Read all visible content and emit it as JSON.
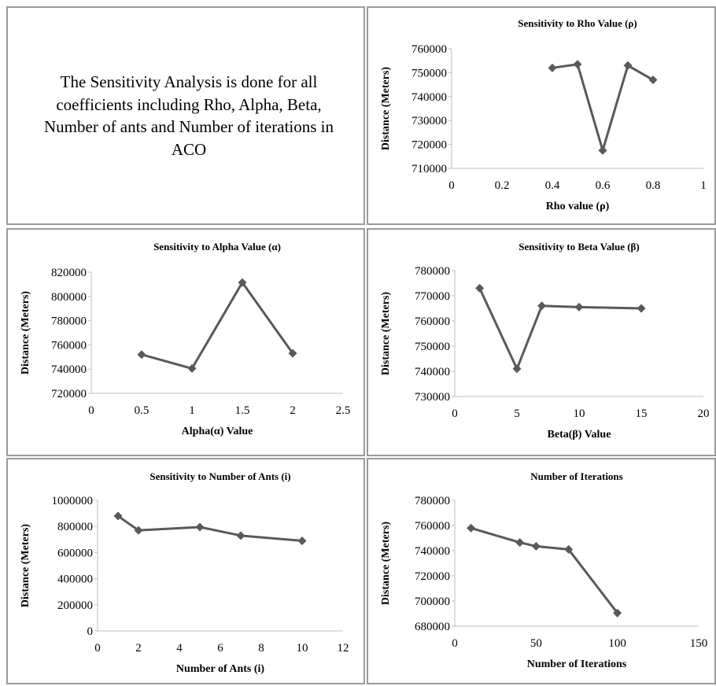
{
  "intro": {
    "text": "The Sensitivity Analysis is done for all coefficients including Rho, Alpha, Beta, Number of ants and Number of iterations in ACO"
  },
  "style": {
    "line_color": "#595959",
    "axis_color": "#bfbfbf",
    "border_color": "#9a9a9a"
  },
  "chart_data": [
    {
      "id": "rho",
      "type": "scatter",
      "title": "Sensitivity to Rho Value (ρ)",
      "xlabel": "Rho value (ρ)",
      "ylabel": "Distance (Meters)",
      "x": [
        0.4,
        0.5,
        0.6,
        0.7,
        0.8
      ],
      "y": [
        752000,
        753500,
        717500,
        753000,
        747000
      ],
      "xlim": [
        0,
        1
      ],
      "ylim": [
        710000,
        760000
      ],
      "xticks": [
        "0",
        "0.2",
        "0.4",
        "0.6",
        "0.8",
        "1"
      ],
      "yticks": [
        "710000",
        "720000",
        "730000",
        "740000",
        "750000",
        "760000"
      ],
      "grid": false,
      "legend": "none"
    },
    {
      "id": "alpha",
      "type": "scatter",
      "title": "Sensitivity to Alpha Value (α)",
      "xlabel": "Alpha(α) Value",
      "ylabel": "Distance (Meters)",
      "x": [
        0.5,
        1,
        1.5,
        2
      ],
      "y": [
        752000,
        740500,
        811500,
        753000
      ],
      "xlim": [
        0,
        2.5
      ],
      "ylim": [
        720000,
        820000
      ],
      "xticks": [
        "0",
        "0.5",
        "1",
        "1.5",
        "2",
        "2.5"
      ],
      "yticks": [
        "720000",
        "740000",
        "760000",
        "780000",
        "800000",
        "820000"
      ],
      "grid": false,
      "legend": "none"
    },
    {
      "id": "beta",
      "type": "scatter",
      "title": "Sensitivity to Beta Value (β)",
      "xlabel": "Beta(β) Value",
      "ylabel": "Distance (Meters)",
      "x": [
        2,
        5,
        7,
        10,
        15
      ],
      "y": [
        773000,
        741000,
        766000,
        765500,
        765000
      ],
      "xlim": [
        0,
        20
      ],
      "ylim": [
        730000,
        780000
      ],
      "xticks": [
        "0",
        "5",
        "10",
        "15",
        "20"
      ],
      "yticks": [
        "730000",
        "740000",
        "750000",
        "760000",
        "770000",
        "780000"
      ],
      "grid": false,
      "legend": "none"
    },
    {
      "id": "ants",
      "type": "scatter",
      "title": "Sensitivity to Number of Ants (i)",
      "xlabel": "Number of Ants (i)",
      "ylabel": "Distance (Meters)",
      "x": [
        1,
        2,
        5,
        7,
        10
      ],
      "y": [
        880000,
        770000,
        795000,
        730000,
        690000
      ],
      "xlim": [
        0,
        12
      ],
      "ylim": [
        0,
        1000000
      ],
      "xticks": [
        "0",
        "2",
        "4",
        "6",
        "8",
        "10",
        "12"
      ],
      "yticks": [
        "0",
        "200000",
        "400000",
        "600000",
        "800000",
        "1000000"
      ],
      "grid": false,
      "legend": "none"
    },
    {
      "id": "iter",
      "type": "scatter",
      "title": "Number of Iterations",
      "xlabel": "Number of Iterations",
      "ylabel": "Distance (Meters)",
      "x": [
        10,
        40,
        50,
        70,
        100
      ],
      "y": [
        758000,
        746500,
        743500,
        741000,
        690500
      ],
      "xlim": [
        0,
        150
      ],
      "ylim": [
        680000,
        780000
      ],
      "xticks": [
        "0",
        "50",
        "100",
        "150"
      ],
      "yticks": [
        "680000",
        "700000",
        "720000",
        "740000",
        "760000",
        "780000"
      ],
      "grid": false,
      "legend": "none"
    }
  ]
}
